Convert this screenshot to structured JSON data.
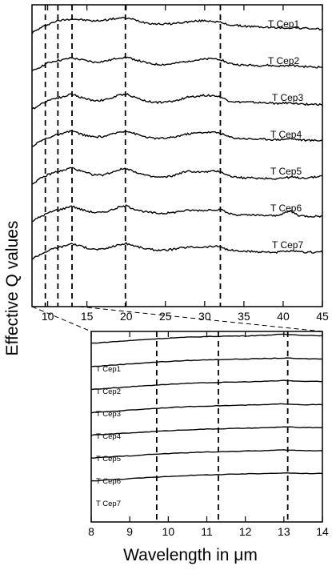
{
  "chart_data": [
    {
      "panel": "top",
      "type": "line",
      "xlim": [
        8,
        45
      ],
      "xticks": [
        10,
        15,
        20,
        25,
        30,
        35,
        40,
        45
      ],
      "tick_labels": [
        "10",
        "15",
        "20",
        "25",
        "30",
        "35",
        "40",
        "45"
      ],
      "ylabel": "Effective Q values",
      "grid": false,
      "dashed_lines_x": [
        9.7,
        11.3,
        13.1,
        19.9,
        32.0
      ],
      "series": [
        {
          "name": "T Cep1",
          "x": [
            8,
            9,
            10,
            11,
            12,
            13,
            14,
            15,
            16,
            17,
            18,
            19,
            20,
            21,
            22,
            23,
            24,
            25,
            26,
            27,
            28,
            29,
            30,
            31,
            32,
            33,
            34,
            35,
            36,
            37,
            38,
            39,
            40,
            41,
            42,
            43,
            44,
            45
          ],
          "values": [
            0.5,
            0.62,
            0.73,
            0.81,
            0.85,
            0.88,
            0.86,
            0.84,
            0.82,
            0.84,
            0.87,
            0.9,
            0.9,
            0.86,
            0.8,
            0.76,
            0.74,
            0.74,
            0.75,
            0.78,
            0.8,
            0.82,
            0.83,
            0.82,
            0.78,
            0.72,
            0.7,
            0.68,
            0.67,
            0.66,
            0.65,
            0.64,
            0.63,
            0.64,
            0.63,
            0.62,
            0.61,
            0.6
          ]
        },
        {
          "name": "T Cep2",
          "x": [
            8,
            9,
            10,
            11,
            12,
            13,
            14,
            15,
            16,
            17,
            18,
            19,
            20,
            21,
            22,
            23,
            24,
            25,
            26,
            27,
            28,
            29,
            30,
            31,
            32,
            33,
            34,
            35,
            36,
            37,
            38,
            39,
            40,
            41,
            42,
            43,
            44,
            45
          ],
          "values": [
            0.45,
            0.57,
            0.68,
            0.74,
            0.77,
            0.82,
            0.78,
            0.74,
            0.7,
            0.72,
            0.76,
            0.82,
            0.84,
            0.78,
            0.72,
            0.66,
            0.64,
            0.64,
            0.66,
            0.7,
            0.74,
            0.76,
            0.78,
            0.8,
            0.78,
            0.68,
            0.64,
            0.62,
            0.62,
            0.61,
            0.62,
            0.6,
            0.6,
            0.62,
            0.59,
            0.58,
            0.57,
            0.57
          ]
        },
        {
          "name": "T Cep3",
          "x": [
            8,
            9,
            10,
            11,
            12,
            13,
            14,
            15,
            16,
            17,
            18,
            19,
            20,
            21,
            22,
            23,
            24,
            25,
            26,
            27,
            28,
            29,
            30,
            31,
            32,
            33,
            34,
            35,
            36,
            37,
            38,
            39,
            40,
            41,
            42,
            43,
            44,
            45
          ],
          "values": [
            0.42,
            0.55,
            0.66,
            0.73,
            0.76,
            0.84,
            0.76,
            0.7,
            0.66,
            0.67,
            0.72,
            0.8,
            0.84,
            0.76,
            0.68,
            0.63,
            0.61,
            0.62,
            0.64,
            0.7,
            0.76,
            0.78,
            0.8,
            0.8,
            0.76,
            0.66,
            0.62,
            0.62,
            0.61,
            0.6,
            0.6,
            0.58,
            0.59,
            0.6,
            0.57,
            0.56,
            0.56,
            0.55
          ]
        },
        {
          "name": "T Cep4",
          "x": [
            8,
            9,
            10,
            11,
            12,
            13,
            14,
            15,
            16,
            17,
            18,
            19,
            20,
            21,
            22,
            23,
            24,
            25,
            26,
            27,
            28,
            29,
            30,
            31,
            32,
            33,
            34,
            35,
            36,
            37,
            38,
            39,
            40,
            41,
            42,
            43,
            44,
            45
          ],
          "values": [
            0.42,
            0.55,
            0.65,
            0.72,
            0.76,
            0.84,
            0.77,
            0.7,
            0.67,
            0.68,
            0.73,
            0.8,
            0.84,
            0.77,
            0.7,
            0.65,
            0.63,
            0.64,
            0.66,
            0.72,
            0.76,
            0.78,
            0.8,
            0.8,
            0.78,
            0.68,
            0.64,
            0.63,
            0.62,
            0.61,
            0.61,
            0.6,
            0.61,
            0.63,
            0.6,
            0.58,
            0.58,
            0.58
          ]
        },
        {
          "name": "T Cep5",
          "x": [
            8,
            9,
            10,
            11,
            12,
            13,
            14,
            15,
            16,
            17,
            18,
            19,
            20,
            21,
            22,
            23,
            24,
            25,
            26,
            27,
            28,
            29,
            30,
            31,
            32,
            33,
            34,
            35,
            36,
            37,
            38,
            39,
            40,
            41,
            42,
            43,
            44,
            45
          ],
          "values": [
            0.4,
            0.53,
            0.64,
            0.72,
            0.76,
            0.84,
            0.76,
            0.69,
            0.64,
            0.64,
            0.7,
            0.78,
            0.82,
            0.74,
            0.66,
            0.6,
            0.58,
            0.58,
            0.62,
            0.7,
            0.74,
            0.72,
            0.72,
            0.74,
            0.74,
            0.62,
            0.58,
            0.56,
            0.56,
            0.55,
            0.55,
            0.54,
            0.56,
            0.58,
            0.56,
            0.56,
            0.58,
            0.62
          ]
        },
        {
          "name": "T Cep6",
          "x": [
            8,
            9,
            10,
            11,
            12,
            13,
            14,
            15,
            16,
            17,
            18,
            19,
            20,
            21,
            22,
            23,
            24,
            25,
            26,
            27,
            28,
            29,
            30,
            31,
            32,
            33,
            34,
            35,
            36,
            37,
            38,
            39,
            40,
            41,
            42,
            43,
            44,
            45
          ],
          "values": [
            0.38,
            0.5,
            0.6,
            0.68,
            0.72,
            0.8,
            0.72,
            0.66,
            0.62,
            0.62,
            0.68,
            0.76,
            0.8,
            0.72,
            0.66,
            0.62,
            0.6,
            0.6,
            0.62,
            0.66,
            0.68,
            0.68,
            0.68,
            0.7,
            0.7,
            0.6,
            0.56,
            0.55,
            0.55,
            0.54,
            0.54,
            0.53,
            0.6,
            0.66,
            0.54,
            0.52,
            0.52,
            0.52
          ]
        },
        {
          "name": "T Cep7",
          "x": [
            8,
            9,
            10,
            11,
            12,
            13,
            14,
            15,
            16,
            17,
            18,
            19,
            20,
            21,
            22,
            23,
            24,
            25,
            26,
            27,
            28,
            29,
            30,
            31,
            32,
            33,
            34,
            35,
            36,
            37,
            38,
            39,
            40,
            41,
            42,
            43,
            44,
            45
          ],
          "values": [
            0.36,
            0.48,
            0.58,
            0.66,
            0.7,
            0.78,
            0.72,
            0.66,
            0.62,
            0.62,
            0.68,
            0.74,
            0.78,
            0.72,
            0.66,
            0.62,
            0.6,
            0.6,
            0.62,
            0.66,
            0.68,
            0.68,
            0.68,
            0.7,
            0.7,
            0.6,
            0.58,
            0.56,
            0.56,
            0.55,
            0.55,
            0.54,
            0.56,
            0.57,
            0.55,
            0.54,
            0.54,
            0.56
          ]
        }
      ]
    },
    {
      "panel": "bottom",
      "type": "line",
      "xlim": [
        8,
        14
      ],
      "xticks": [
        8,
        9,
        10,
        11,
        12,
        13,
        14
      ],
      "tick_labels": [
        "8",
        "9",
        "10",
        "11",
        "12",
        "13",
        "14"
      ],
      "xlabel": "Wavelength in μm",
      "grid": false,
      "dashed_lines_x": [
        9.7,
        11.3,
        13.1
      ],
      "series": [
        {
          "name": "T Cep1",
          "x": [
            8,
            8.5,
            9,
            9.5,
            10,
            10.5,
            11,
            11.5,
            12,
            12.5,
            13,
            13.5,
            14
          ],
          "values": [
            0.4,
            0.46,
            0.52,
            0.58,
            0.63,
            0.67,
            0.7,
            0.72,
            0.73,
            0.76,
            0.8,
            0.76,
            0.74
          ]
        },
        {
          "name": "T Cep2",
          "x": [
            8,
            8.5,
            9,
            9.5,
            10,
            10.5,
            11,
            11.5,
            12,
            12.5,
            13,
            13.5,
            14
          ],
          "values": [
            0.36,
            0.42,
            0.48,
            0.54,
            0.59,
            0.63,
            0.66,
            0.68,
            0.7,
            0.72,
            0.74,
            0.71,
            0.7
          ]
        },
        {
          "name": "T Cep3",
          "x": [
            8,
            8.5,
            9,
            9.5,
            10,
            10.5,
            11,
            11.5,
            12,
            12.5,
            13,
            13.5,
            14
          ],
          "values": [
            0.34,
            0.4,
            0.46,
            0.52,
            0.57,
            0.61,
            0.64,
            0.66,
            0.68,
            0.7,
            0.74,
            0.7,
            0.69
          ]
        },
        {
          "name": "T Cep4",
          "x": [
            8,
            8.5,
            9,
            9.5,
            10,
            10.5,
            11,
            11.5,
            12,
            12.5,
            13,
            13.5,
            14
          ],
          "values": [
            0.3,
            0.36,
            0.42,
            0.48,
            0.53,
            0.57,
            0.6,
            0.62,
            0.64,
            0.66,
            0.7,
            0.66,
            0.66
          ]
        },
        {
          "name": "T Cep5",
          "x": [
            8,
            8.5,
            9,
            9.5,
            10,
            10.5,
            11,
            11.5,
            12,
            12.5,
            13,
            13.5,
            14
          ],
          "values": [
            0.3,
            0.35,
            0.4,
            0.45,
            0.5,
            0.54,
            0.57,
            0.59,
            0.61,
            0.63,
            0.67,
            0.64,
            0.64
          ]
        },
        {
          "name": "T Cep6",
          "x": [
            8,
            8.5,
            9,
            9.5,
            10,
            10.5,
            11,
            11.5,
            12,
            12.5,
            13,
            13.5,
            14
          ],
          "values": [
            0.28,
            0.33,
            0.38,
            0.44,
            0.48,
            0.52,
            0.55,
            0.57,
            0.59,
            0.61,
            0.64,
            0.61,
            0.61
          ]
        },
        {
          "name": "T Cep7",
          "x": [
            8,
            8.5,
            9,
            9.5,
            10,
            10.5,
            11,
            11.5,
            12,
            12.5,
            13,
            13.5,
            14
          ],
          "values": [
            0.26,
            0.31,
            0.36,
            0.41,
            0.46,
            0.5,
            0.53,
            0.55,
            0.57,
            0.59,
            0.62,
            0.59,
            0.59
          ]
        }
      ]
    }
  ]
}
